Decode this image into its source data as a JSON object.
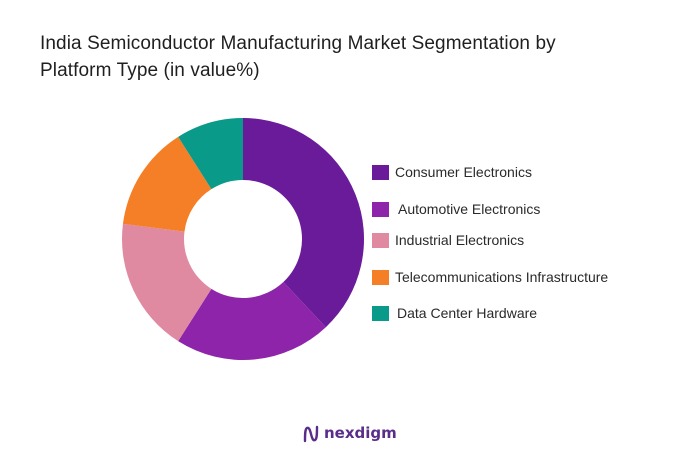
{
  "title_lines": [
    "India Semiconductor Manufacturing Market Segmentation by",
    "Platform Type (in value%)"
  ],
  "chart_data": {
    "type": "pie",
    "variant": "donut",
    "title": "India Semiconductor Manufacturing Market Segmentation by Platform Type (in value%)",
    "legend_position": "right",
    "series": [
      {
        "name": "Consumer Electronics",
        "value": 38,
        "color": "#6a1b9a"
      },
      {
        "name": "Automotive Electronics",
        "value": 21,
        "color": "#8e24aa"
      },
      {
        "name": "Industrial Electronics",
        "value": 18,
        "color": "#e08aa2"
      },
      {
        "name": "Telecommunications Infrastructure",
        "value": 14,
        "color": "#f57f26"
      },
      {
        "name": "Data Center Hardware",
        "value": 9,
        "color": "#0a9a8a"
      }
    ]
  },
  "brand": {
    "name": "nexdigm",
    "icon": "nexdigm-logo-icon",
    "color": "#5a2d8a"
  }
}
